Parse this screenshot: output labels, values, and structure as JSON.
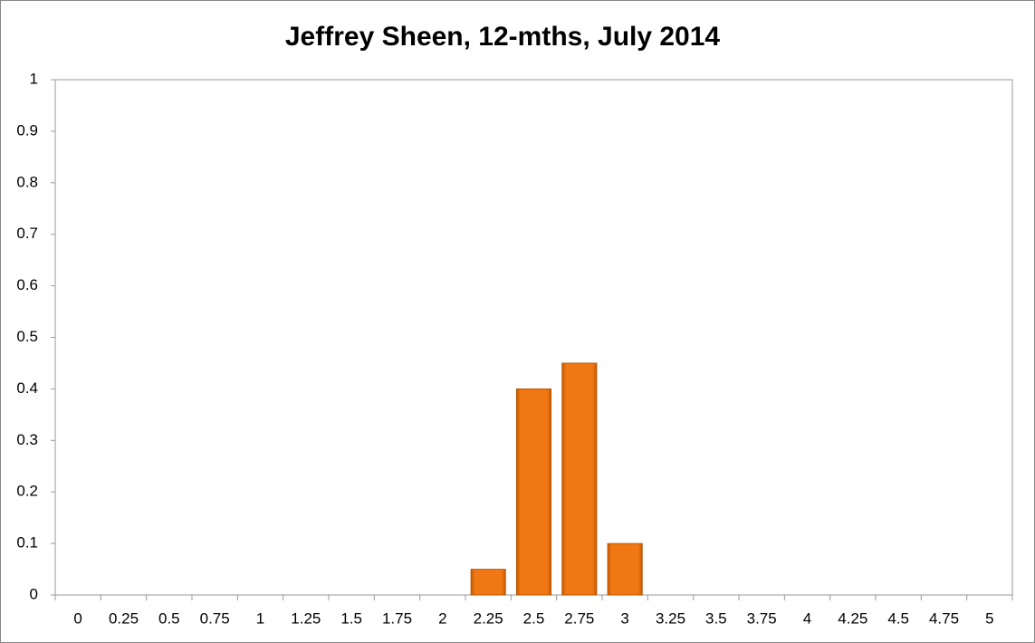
{
  "chart_data": {
    "type": "bar",
    "title": "Jeffrey Sheen, 12-mths, July 2014",
    "categories": [
      "0",
      "0.25",
      "0.5",
      "0.75",
      "1",
      "1.25",
      "1.5",
      "1.75",
      "2",
      "2.25",
      "2.5",
      "2.75",
      "3",
      "3.25",
      "3.5",
      "3.75",
      "4",
      "4.25",
      "4.5",
      "4.75",
      "5"
    ],
    "values": [
      0,
      0,
      0,
      0,
      0,
      0,
      0,
      0,
      0,
      0.05,
      0.4,
      0.45,
      0.1,
      0,
      0,
      0,
      0,
      0,
      0,
      0,
      0
    ],
    "color": "#f07814",
    "ylim": [
      0,
      1
    ],
    "yticks": [
      0,
      0.1,
      0.2,
      0.3,
      0.4,
      0.5,
      0.6,
      0.7,
      0.8,
      0.9,
      1
    ],
    "grid": false
  }
}
